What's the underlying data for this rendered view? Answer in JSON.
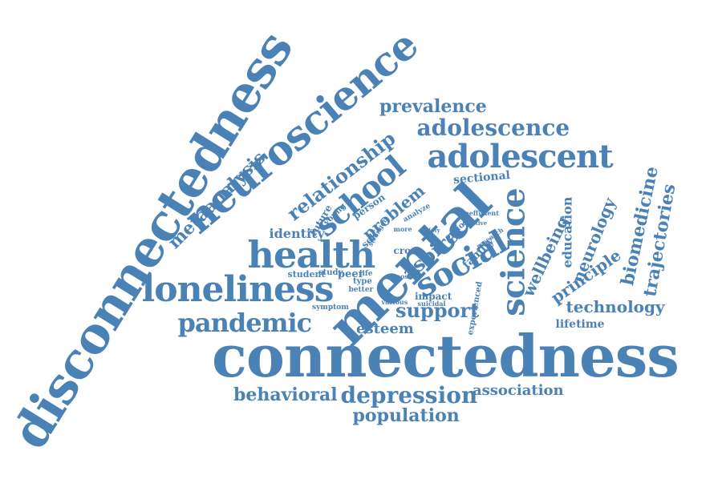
{
  "color": "#4a82b6",
  "words": [
    {
      "key": "disconnectedness",
      "text": "disconnectedness"
    },
    {
      "key": "neuroscience",
      "text": "neuroscience"
    },
    {
      "key": "connectedness",
      "text": "connectedness"
    },
    {
      "key": "prevalence",
      "text": "prevalence"
    },
    {
      "key": "adolescence",
      "text": "adolescence"
    },
    {
      "key": "adolescent",
      "text": "adolescent"
    },
    {
      "key": "relationship",
      "text": "relationship"
    },
    {
      "key": "metaanalysis",
      "text": "metaanalysis"
    },
    {
      "key": "school",
      "text": "school"
    },
    {
      "key": "mental",
      "text": "mental"
    },
    {
      "key": "health",
      "text": "health"
    },
    {
      "key": "loneliness",
      "text": "loneliness"
    },
    {
      "key": "pandemic",
      "text": "pandemic"
    },
    {
      "key": "social",
      "text": "social"
    },
    {
      "key": "science",
      "text": "science"
    },
    {
      "key": "sectional",
      "text": "sectional"
    },
    {
      "key": "identity",
      "text": "identity"
    },
    {
      "key": "problem",
      "text": "problem"
    },
    {
      "key": "aspire",
      "text": "aspire"
    },
    {
      "key": "support",
      "text": "support"
    },
    {
      "key": "esteem",
      "text": "esteem"
    },
    {
      "key": "wellbeing",
      "text": "wellbeing"
    },
    {
      "key": "education",
      "text": "education"
    },
    {
      "key": "neurology",
      "text": "neurology"
    },
    {
      "key": "principle",
      "text": "principle"
    },
    {
      "key": "biomedicine",
      "text": "biomedicine"
    },
    {
      "key": "trajectories",
      "text": "trajectories"
    },
    {
      "key": "technology",
      "text": "technology"
    },
    {
      "key": "lifetime",
      "text": "lifetime"
    },
    {
      "key": "behavioral",
      "text": "behavioral"
    },
    {
      "key": "depression",
      "text": "depression"
    },
    {
      "key": "association",
      "text": "association"
    },
    {
      "key": "population",
      "text": "population"
    },
    {
      "key": "future",
      "text": "future"
    },
    {
      "key": "young",
      "text": "young"
    },
    {
      "key": "person",
      "text": "person"
    },
    {
      "key": "self",
      "text": "self"
    },
    {
      "key": "stronger",
      "text": "stronger"
    },
    {
      "key": "analyze",
      "text": "analyze"
    },
    {
      "key": "coefficient",
      "text": "coefficient"
    },
    {
      "key": "positive",
      "text": "positive"
    },
    {
      "key": "option",
      "text": "option"
    },
    {
      "key": "research",
      "text": "research"
    },
    {
      "key": "family",
      "text": "family"
    },
    {
      "key": "more",
      "text": "more"
    },
    {
      "key": "safety",
      "text": "safety"
    },
    {
      "key": "cross",
      "text": "cross"
    },
    {
      "key": "student",
      "text": "student"
    },
    {
      "key": "study",
      "text": "study"
    },
    {
      "key": "peer",
      "text": "peer"
    },
    {
      "key": "life",
      "text": "life"
    },
    {
      "key": "type",
      "text": "type"
    },
    {
      "key": "better",
      "text": "better"
    },
    {
      "key": "symptom",
      "text": "symptom"
    },
    {
      "key": "post",
      "text": "post"
    },
    {
      "key": "various",
      "text": "various"
    },
    {
      "key": "impact",
      "text": "impact"
    },
    {
      "key": "suicidal",
      "text": "suicidal"
    },
    {
      "key": "experienced",
      "text": "experienced"
    }
  ]
}
